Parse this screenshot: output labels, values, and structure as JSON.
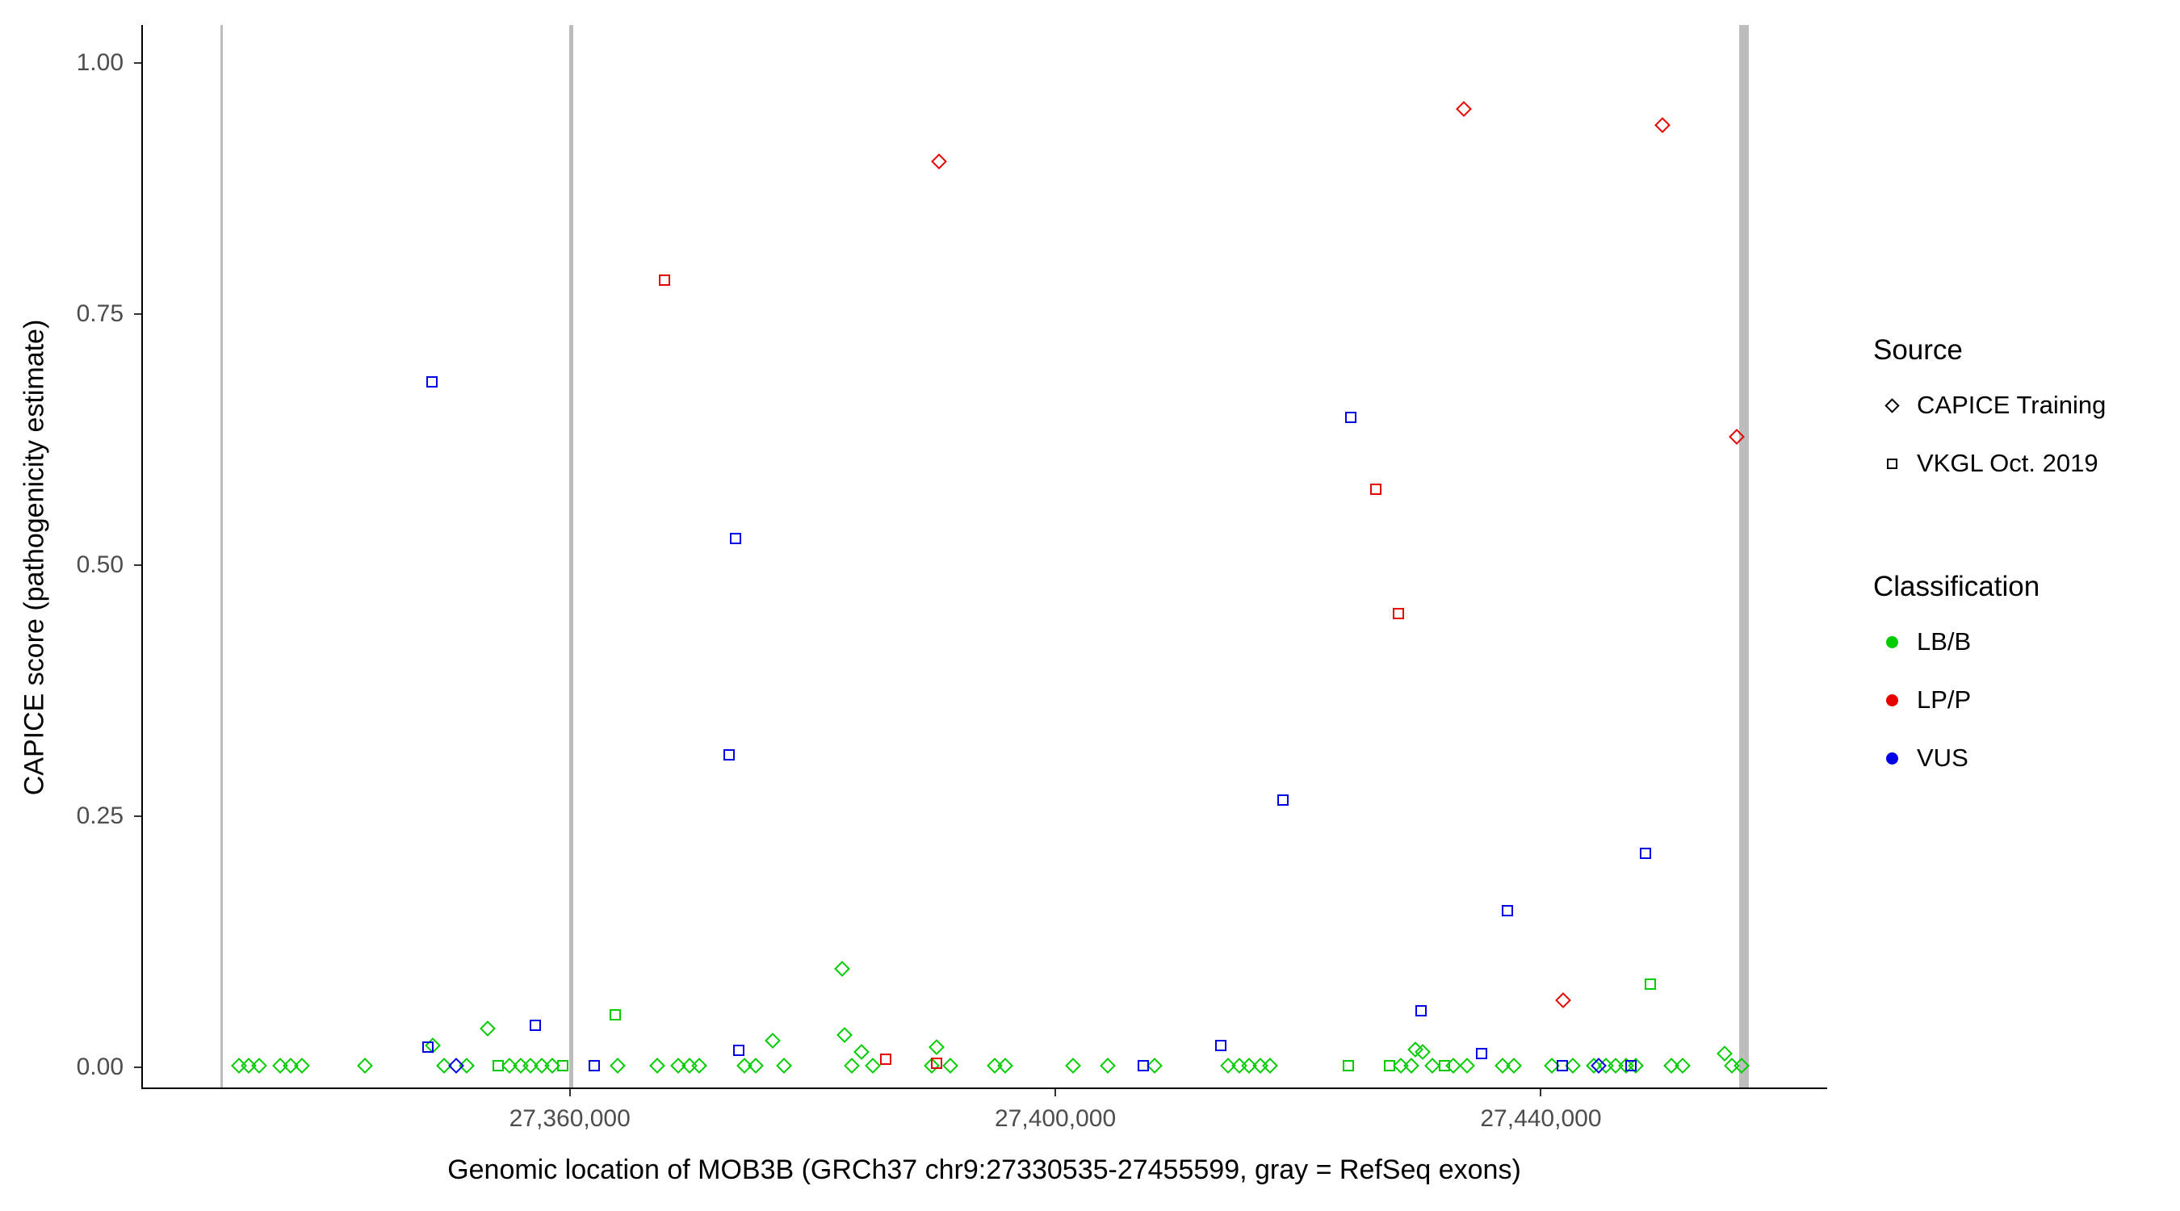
{
  "legend": {
    "source": {
      "title": "Source",
      "items": [
        {
          "label": "CAPICE Training",
          "shape": "diamond"
        },
        {
          "label": "VKGL Oct. 2019",
          "shape": "square"
        }
      ]
    },
    "classification": {
      "title": "Classification",
      "items": [
        {
          "label": "LB/B",
          "color": "#00cc00"
        },
        {
          "label": "LP/P",
          "color": "#e60000"
        },
        {
          "label": "VUS",
          "color": "#0000e6"
        }
      ]
    }
  },
  "chart_data": {
    "type": "scatter",
    "title": "",
    "xlabel": "Genomic location of MOB3B (GRCh37 chr9:27330535-27455599, gray = RefSeq exons)",
    "ylabel": "CAPICE score (pathogenicity estimate)",
    "grid": false,
    "legend_position": "right",
    "xlim": [
      27324700,
      27463450
    ],
    "ylim": [
      -0.02,
      1.038
    ],
    "x_ticks": [
      {
        "value": 27360000,
        "label": "27,360,000"
      },
      {
        "value": 27400000,
        "label": "27,400,000"
      },
      {
        "value": 27440000,
        "label": "27,440,000"
      }
    ],
    "y_ticks": [
      {
        "value": 0.0,
        "label": "0.00"
      },
      {
        "value": 0.25,
        "label": "0.25"
      },
      {
        "value": 0.5,
        "label": "0.50"
      },
      {
        "value": 0.75,
        "label": "0.75"
      },
      {
        "value": 1.0,
        "label": "1.00"
      }
    ],
    "exons_color": "#bdbdbd",
    "exons": [
      {
        "x": 27331200,
        "width": 3
      },
      {
        "x": 27360000,
        "width": 5
      },
      {
        "x": 27456600,
        "width": 12
      }
    ],
    "series": [
      {
        "name": "CAPICE Training / LB/B",
        "source": "CAPICE Training",
        "classification": "LB/B",
        "shape": "diamond",
        "color": "#00cc00",
        "points": [
          [
            27332600,
            0.002
          ],
          [
            27333400,
            0.002
          ],
          [
            27334300,
            0.002
          ],
          [
            27336000,
            0.002
          ],
          [
            27336900,
            0.002
          ],
          [
            27337800,
            0.002
          ],
          [
            27343000,
            0.002
          ],
          [
            27348600,
            0.022
          ],
          [
            27349500,
            0.002
          ],
          [
            27351400,
            0.002
          ],
          [
            27353100,
            0.039
          ],
          [
            27354900,
            0.002
          ],
          [
            27355800,
            0.002
          ],
          [
            27356600,
            0.002
          ],
          [
            27357560,
            0.002
          ],
          [
            27358400,
            0.002
          ],
          [
            27363800,
            0.002
          ],
          [
            27367100,
            0.002
          ],
          [
            27368800,
            0.002
          ],
          [
            27369750,
            0.002
          ],
          [
            27370560,
            0.002
          ],
          [
            27374270,
            0.002
          ],
          [
            27375200,
            0.002
          ],
          [
            27376600,
            0.027
          ],
          [
            27377500,
            0.002
          ],
          [
            27382300,
            0.098
          ],
          [
            27382500,
            0.032
          ],
          [
            27383100,
            0.002
          ],
          [
            27383900,
            0.015
          ],
          [
            27384800,
            0.002
          ],
          [
            27389700,
            0.002
          ],
          [
            27390100,
            0.02
          ],
          [
            27391200,
            0.002
          ],
          [
            27394900,
            0.002
          ],
          [
            27395750,
            0.002
          ],
          [
            27401300,
            0.002
          ],
          [
            27404200,
            0.002
          ],
          [
            27408060,
            0.002
          ],
          [
            27414100,
            0.002
          ],
          [
            27415000,
            0.002
          ],
          [
            27415800,
            0.002
          ],
          [
            27416750,
            0.002
          ],
          [
            27417560,
            0.002
          ],
          [
            27428350,
            0.002
          ],
          [
            27429200,
            0.002
          ],
          [
            27429500,
            0.018
          ],
          [
            27430100,
            0.015
          ],
          [
            27430900,
            0.002
          ],
          [
            27432640,
            0.002
          ],
          [
            27433800,
            0.002
          ],
          [
            27436700,
            0.002
          ],
          [
            27437650,
            0.002
          ],
          [
            27440800,
            0.002
          ],
          [
            27442500,
            0.002
          ],
          [
            27444250,
            0.002
          ],
          [
            27445200,
            0.002
          ],
          [
            27446000,
            0.002
          ],
          [
            27446900,
            0.002
          ],
          [
            27447700,
            0.002
          ],
          [
            27450600,
            0.002
          ],
          [
            27451540,
            0.002
          ],
          [
            27455000,
            0.014
          ],
          [
            27455600,
            0.002
          ],
          [
            27456400,
            0.002
          ]
        ]
      },
      {
        "name": "VKGL Oct. 2019 / LB/B",
        "source": "VKGL Oct. 2019",
        "classification": "LB/B",
        "shape": "square",
        "color": "#00cc00",
        "points": [
          [
            27363600,
            0.052
          ],
          [
            27448900,
            0.083
          ],
          [
            27353960,
            0.002
          ],
          [
            27359300,
            0.002
          ],
          [
            27424000,
            0.002
          ],
          [
            27427400,
            0.002
          ],
          [
            27431900,
            0.002
          ]
        ]
      },
      {
        "name": "CAPICE Training / VUS",
        "source": "CAPICE Training",
        "classification": "VUS",
        "shape": "diamond",
        "color": "#0000e6",
        "points": [
          [
            27350500,
            0.002
          ],
          [
            27444600,
            0.002
          ]
        ]
      },
      {
        "name": "VKGL Oct. 2019 / VUS",
        "source": "VKGL Oct. 2019",
        "classification": "VUS",
        "shape": "square",
        "color": "#0000e6",
        "points": [
          [
            27348500,
            0.683
          ],
          [
            27373500,
            0.527
          ],
          [
            27373000,
            0.311
          ],
          [
            27424200,
            0.647
          ],
          [
            27418600,
            0.266
          ],
          [
            27437100,
            0.156
          ],
          [
            27448500,
            0.213
          ],
          [
            27357000,
            0.042
          ],
          [
            27430000,
            0.056
          ],
          [
            27413500,
            0.022
          ],
          [
            27348200,
            0.02
          ],
          [
            27373800,
            0.017
          ],
          [
            27361900,
            0.002
          ],
          [
            27435000,
            0.014
          ],
          [
            27407100,
            0.002
          ],
          [
            27447300,
            0.002
          ],
          [
            27441600,
            0.002
          ]
        ]
      },
      {
        "name": "CAPICE Training / LP/P",
        "source": "CAPICE Training",
        "classification": "LP/P",
        "shape": "diamond",
        "color": "#e60000",
        "points": [
          [
            27390300,
            0.902
          ],
          [
            27433500,
            0.954
          ],
          [
            27449900,
            0.938
          ],
          [
            27456000,
            0.628
          ],
          [
            27441700,
            0.067
          ]
        ]
      },
      {
        "name": "VKGL Oct. 2019 / LP/P",
        "source": "VKGL Oct. 2019",
        "classification": "LP/P",
        "shape": "square",
        "color": "#e60000",
        "points": [
          [
            27367700,
            0.784
          ],
          [
            27426300,
            0.576
          ],
          [
            27428100,
            0.452
          ],
          [
            27385900,
            0.008
          ],
          [
            27390100,
            0.004
          ]
        ]
      }
    ]
  }
}
